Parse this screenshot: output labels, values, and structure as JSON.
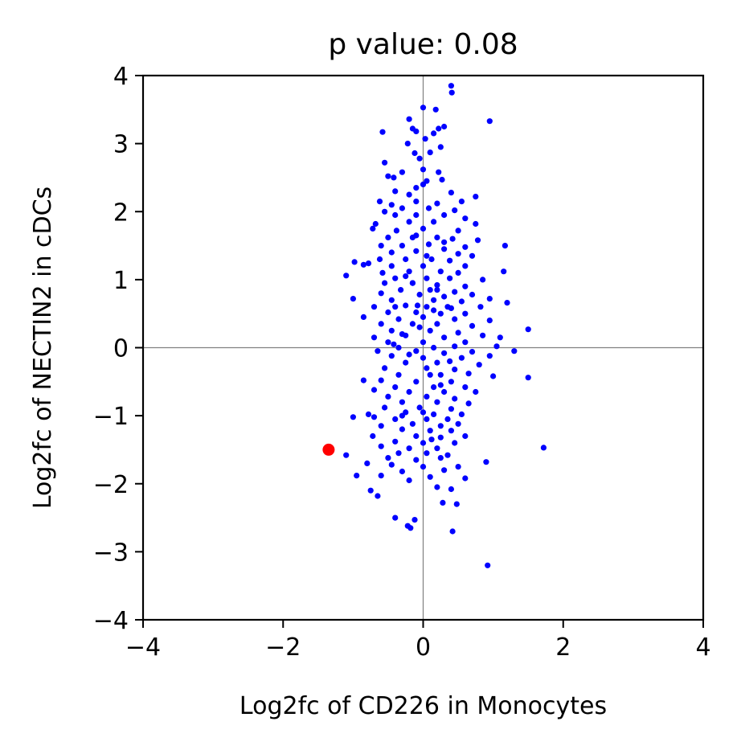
{
  "chart_data": {
    "type": "scatter",
    "title": "p value: 0.08",
    "xlabel": "Log2fc of CD226 in Monocytes",
    "ylabel": "Log2fc of NECTIN2 in cDCs",
    "xlim": [
      -4,
      4
    ],
    "ylim": [
      -4,
      4
    ],
    "x_ticks": [
      -4,
      -2,
      0,
      2,
      4
    ],
    "y_ticks": [
      -4,
      -3,
      -2,
      -1,
      0,
      1,
      2,
      3,
      4
    ],
    "x_tick_labels": [
      "−4",
      "−2",
      "0",
      "2",
      "4"
    ],
    "y_tick_labels": [
      "−4",
      "−3",
      "−2",
      "−1",
      "0",
      "1",
      "2",
      "3",
      "4"
    ],
    "reference_lines": {
      "x": 0,
      "y": 0
    },
    "grid": false,
    "series": [
      {
        "color": "#0000ff",
        "points": [
          [
            0.4,
            3.85
          ],
          [
            0.41,
            3.75
          ],
          [
            0.0,
            3.53
          ],
          [
            0.18,
            3.5
          ],
          [
            -0.2,
            3.36
          ],
          [
            0.95,
            3.33
          ],
          [
            0.3,
            3.25
          ],
          [
            -0.15,
            3.22
          ],
          [
            0.22,
            3.22
          ],
          [
            -0.58,
            3.17
          ],
          [
            -0.1,
            3.18
          ],
          [
            0.15,
            3.15
          ],
          [
            0.03,
            3.07
          ],
          [
            -0.22,
            3.0
          ],
          [
            0.25,
            2.95
          ],
          [
            -0.12,
            2.86
          ],
          [
            0.1,
            2.87
          ],
          [
            -0.05,
            2.78
          ],
          [
            -0.55,
            2.72
          ],
          [
            0.0,
            2.62
          ],
          [
            -0.3,
            2.58
          ],
          [
            0.22,
            2.58
          ],
          [
            -0.5,
            2.52
          ],
          [
            -0.42,
            2.5
          ],
          [
            0.05,
            2.45
          ],
          [
            0.27,
            2.47
          ],
          [
            -0.1,
            2.35
          ],
          [
            0.0,
            2.4
          ],
          [
            -0.4,
            2.3
          ],
          [
            -0.2,
            2.25
          ],
          [
            0.4,
            2.28
          ],
          [
            0.75,
            2.22
          ],
          [
            -0.62,
            2.15
          ],
          [
            -0.45,
            2.1
          ],
          [
            -0.1,
            2.15
          ],
          [
            0.2,
            2.12
          ],
          [
            0.55,
            2.15
          ],
          [
            -0.3,
            2.05
          ],
          [
            0.08,
            2.05
          ],
          [
            -0.55,
            2.0
          ],
          [
            0.45,
            2.02
          ],
          [
            -0.4,
            1.95
          ],
          [
            -0.1,
            1.95
          ],
          [
            0.3,
            1.95
          ],
          [
            0.6,
            1.9
          ],
          [
            -0.68,
            1.82
          ],
          [
            -0.2,
            1.85
          ],
          [
            0.15,
            1.85
          ],
          [
            0.75,
            1.82
          ],
          [
            -0.72,
            1.75
          ],
          [
            0.0,
            1.75
          ],
          [
            -0.38,
            1.72
          ],
          [
            0.5,
            1.72
          ],
          [
            -0.5,
            1.62
          ],
          [
            -0.15,
            1.62
          ],
          [
            0.2,
            1.62
          ],
          [
            0.42,
            1.6
          ],
          [
            0.78,
            1.58
          ],
          [
            -0.6,
            1.5
          ],
          [
            -0.3,
            1.5
          ],
          [
            0.08,
            1.52
          ],
          [
            0.3,
            1.45
          ],
          [
            0.6,
            1.48
          ],
          [
            1.17,
            1.5
          ],
          [
            -0.45,
            1.4
          ],
          [
            -0.1,
            1.42
          ],
          [
            0.5,
            1.38
          ],
          [
            0.7,
            1.35
          ],
          [
            -0.62,
            1.3
          ],
          [
            -0.25,
            1.3
          ],
          [
            0.12,
            1.3
          ],
          [
            0.38,
            1.28
          ],
          [
            -0.98,
            1.26
          ],
          [
            -0.85,
            1.22
          ],
          [
            -0.78,
            1.24
          ],
          [
            -0.45,
            1.2
          ],
          [
            0.0,
            1.2
          ],
          [
            0.6,
            1.2
          ],
          [
            -0.58,
            1.1
          ],
          [
            -0.2,
            1.12
          ],
          [
            0.25,
            1.12
          ],
          [
            0.5,
            1.1
          ],
          [
            1.15,
            1.12
          ],
          [
            -1.1,
            1.06
          ],
          [
            -0.4,
            1.02
          ],
          [
            0.05,
            1.02
          ],
          [
            0.38,
            1.02
          ],
          [
            0.85,
            1.0
          ],
          [
            -0.55,
            0.95
          ],
          [
            -0.15,
            0.95
          ],
          [
            0.2,
            0.92
          ],
          [
            0.6,
            0.9
          ],
          [
            -0.32,
            0.85
          ],
          [
            0.1,
            0.85
          ],
          [
            0.45,
            0.82
          ],
          [
            -0.6,
            0.8
          ],
          [
            -0.05,
            0.78
          ],
          [
            0.3,
            0.75
          ],
          [
            0.7,
            0.78
          ],
          [
            -1.0,
            0.72
          ],
          [
            -0.45,
            0.7
          ],
          [
            0.15,
            0.7
          ],
          [
            0.55,
            0.68
          ],
          [
            0.95,
            0.72
          ],
          [
            1.2,
            0.66
          ],
          [
            -0.7,
            0.6
          ],
          [
            -0.25,
            0.62
          ],
          [
            0.05,
            0.6
          ],
          [
            0.4,
            0.58
          ],
          [
            0.82,
            0.6
          ],
          [
            -0.5,
            0.52
          ],
          [
            -0.1,
            0.52
          ],
          [
            0.25,
            0.5
          ],
          [
            0.6,
            0.5
          ],
          [
            -0.85,
            0.45
          ],
          [
            -0.35,
            0.42
          ],
          [
            0.0,
            0.45
          ],
          [
            0.45,
            0.42
          ],
          [
            0.95,
            0.4
          ],
          [
            -0.6,
            0.35
          ],
          [
            -0.15,
            0.35
          ],
          [
            0.2,
            0.35
          ],
          [
            0.7,
            0.32
          ],
          [
            -0.45,
            0.25
          ],
          [
            0.1,
            0.25
          ],
          [
            0.5,
            0.22
          ],
          [
            1.5,
            0.27
          ],
          [
            -0.7,
            0.15
          ],
          [
            -0.25,
            0.18
          ],
          [
            0.3,
            0.15
          ],
          [
            0.85,
            0.18
          ],
          [
            1.1,
            0.15
          ],
          [
            -0.5,
            0.08
          ],
          [
            0.0,
            0.08
          ],
          [
            0.6,
            0.08
          ],
          [
            -0.35,
            0.0
          ],
          [
            0.15,
            0.0
          ],
          [
            0.45,
            0.02
          ],
          [
            1.05,
            0.02
          ],
          [
            -0.65,
            -0.05
          ],
          [
            -0.1,
            -0.05
          ],
          [
            0.3,
            -0.08
          ],
          [
            0.7,
            -0.06
          ],
          [
            1.3,
            -0.05
          ],
          [
            -0.45,
            -0.12
          ],
          [
            0.0,
            -0.15
          ],
          [
            0.55,
            -0.15
          ],
          [
            0.95,
            -0.12
          ],
          [
            -0.25,
            -0.22
          ],
          [
            0.2,
            -0.22
          ],
          [
            0.8,
            -0.25
          ],
          [
            -0.55,
            -0.3
          ],
          [
            0.05,
            -0.3
          ],
          [
            0.45,
            -0.32
          ],
          [
            -0.35,
            -0.4
          ],
          [
            0.25,
            -0.4
          ],
          [
            0.65,
            -0.38
          ],
          [
            1.0,
            -0.42
          ],
          [
            1.5,
            -0.44
          ],
          [
            -0.6,
            -0.48
          ],
          [
            -0.1,
            -0.5
          ],
          [
            0.4,
            -0.5
          ],
          [
            -0.85,
            -0.48
          ],
          [
            -0.4,
            -0.58
          ],
          [
            0.15,
            -0.58
          ],
          [
            0.6,
            -0.58
          ],
          [
            -0.7,
            -0.62
          ],
          [
            -0.2,
            -0.65
          ],
          [
            0.3,
            -0.65
          ],
          [
            0.75,
            -0.65
          ],
          [
            -0.5,
            -0.72
          ],
          [
            0.05,
            -0.72
          ],
          [
            0.45,
            -0.75
          ],
          [
            -0.3,
            -0.8
          ],
          [
            0.2,
            -0.8
          ],
          [
            0.65,
            -0.82
          ],
          [
            -0.55,
            -0.88
          ],
          [
            -0.05,
            -0.88
          ],
          [
            0.4,
            -0.9
          ],
          [
            -0.25,
            -0.95
          ],
          [
            0.15,
            -0.98
          ],
          [
            0.55,
            -0.98
          ],
          [
            -0.78,
            -0.98
          ],
          [
            -0.7,
            -1.02
          ],
          [
            -1.0,
            -1.02
          ],
          [
            -0.4,
            -1.05
          ],
          [
            0.05,
            -1.05
          ],
          [
            0.35,
            -1.05
          ],
          [
            -0.15,
            -1.12
          ],
          [
            0.25,
            -1.15
          ],
          [
            0.5,
            -1.12
          ],
          [
            -0.6,
            -1.15
          ],
          [
            -0.3,
            -1.2
          ],
          [
            0.1,
            -1.22
          ],
          [
            0.4,
            -1.22
          ],
          [
            -0.72,
            -1.3
          ],
          [
            -0.1,
            -1.3
          ],
          [
            0.25,
            -1.32
          ],
          [
            0.6,
            -1.3
          ],
          [
            -0.4,
            -1.38
          ],
          [
            0.0,
            -1.4
          ],
          [
            0.45,
            -1.4
          ],
          [
            -0.6,
            -1.45
          ],
          [
            -0.2,
            -1.48
          ],
          [
            0.2,
            -1.48
          ],
          [
            1.72,
            -1.47
          ],
          [
            -0.35,
            -1.55
          ],
          [
            0.05,
            -1.55
          ],
          [
            0.35,
            -1.58
          ],
          [
            -1.1,
            -1.58
          ],
          [
            -0.5,
            -1.62
          ],
          [
            -0.1,
            -1.65
          ],
          [
            0.25,
            -1.62
          ],
          [
            0.9,
            -1.68
          ],
          [
            -0.8,
            -1.7
          ],
          [
            -0.45,
            -1.72
          ],
          [
            0.0,
            -1.75
          ],
          [
            0.5,
            -1.75
          ],
          [
            -0.3,
            -1.82
          ],
          [
            0.3,
            -1.8
          ],
          [
            -0.95,
            -1.88
          ],
          [
            -0.6,
            -1.88
          ],
          [
            0.1,
            -1.9
          ],
          [
            0.6,
            -1.92
          ],
          [
            -0.2,
            -1.95
          ],
          [
            -0.75,
            -2.1
          ],
          [
            0.2,
            -2.05
          ],
          [
            0.4,
            -2.08
          ],
          [
            -0.65,
            -2.18
          ],
          [
            0.48,
            -2.3
          ],
          [
            0.28,
            -2.28
          ],
          [
            -0.4,
            -2.5
          ],
          [
            -0.12,
            -2.53
          ],
          [
            -0.22,
            -2.62
          ],
          [
            -0.18,
            -2.65
          ],
          [
            0.42,
            -2.7
          ],
          [
            0.92,
            -3.2
          ],
          [
            -0.15,
            0.95
          ],
          [
            0.05,
            1.35
          ],
          [
            -0.3,
            0.2
          ],
          [
            0.35,
            0.6
          ],
          [
            -0.2,
            -0.1
          ],
          [
            0.1,
            -0.4
          ],
          [
            -0.05,
            0.3
          ],
          [
            0.15,
            0.55
          ],
          [
            -0.4,
            0.6
          ],
          [
            0.25,
            -0.55
          ],
          [
            -0.25,
            1.05
          ],
          [
            0.0,
            -0.95
          ],
          [
            0.3,
            1.55
          ],
          [
            -0.1,
            1.65
          ],
          [
            0.12,
            -1.35
          ],
          [
            -0.3,
            -1.0
          ],
          [
            0.38,
            -0.2
          ],
          [
            -0.42,
            0.05
          ],
          [
            0.2,
            0.85
          ],
          [
            -0.08,
            0.62
          ]
        ]
      },
      {
        "color": "#ff0000",
        "points": [
          [
            -1.35,
            -1.5
          ]
        ]
      }
    ]
  }
}
